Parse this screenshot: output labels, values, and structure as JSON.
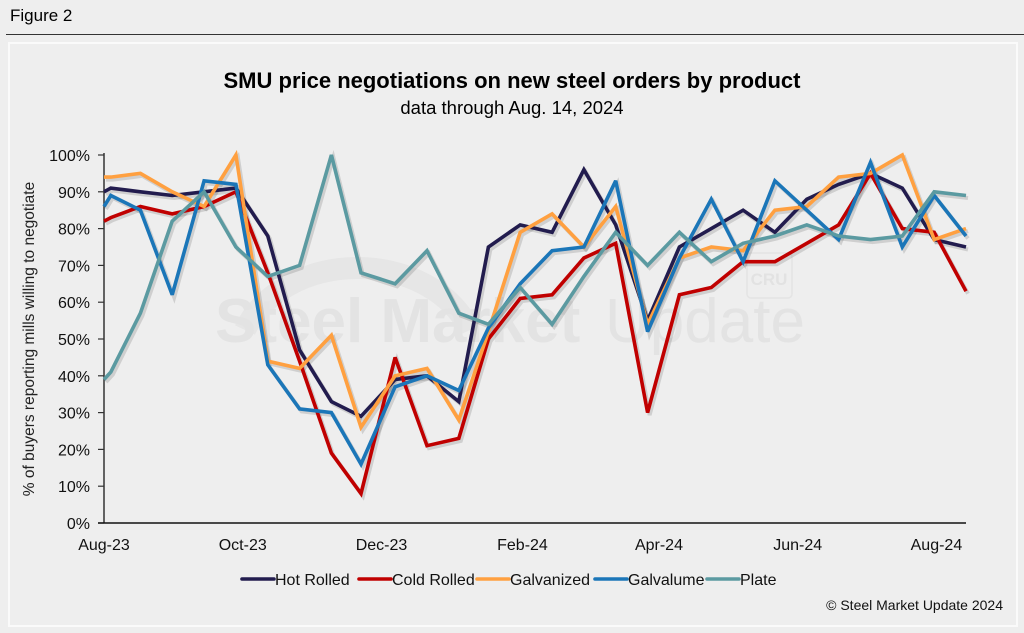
{
  "figure_label": "Figure 2",
  "copyright": "© Steel Market Update 2024",
  "watermark": {
    "bold": "Steel Market",
    "light": "Update",
    "badge": "CRU"
  },
  "chart_data": {
    "type": "line",
    "title": "SMU price negotiations on new steel orders by product",
    "subtitle": "data through Aug. 14, 2024",
    "xlabel": "",
    "ylabel": "% of buyers reporting mills willing to negotiate",
    "ylim": [
      0,
      100
    ],
    "xlim": [
      "2023-08-01",
      "2024-08-14"
    ],
    "y_ticks": [
      0,
      10,
      20,
      30,
      40,
      50,
      60,
      70,
      80,
      90,
      100
    ],
    "y_tick_labels": [
      "0%",
      "10%",
      "20%",
      "30%",
      "40%",
      "50%",
      "60%",
      "70%",
      "80%",
      "90%",
      "100%"
    ],
    "x_ticks": [
      "2023-08-01",
      "2023-10-01",
      "2023-12-01",
      "2024-02-01",
      "2024-04-01",
      "2024-06-01",
      "2024-08-01"
    ],
    "x_tick_labels": [
      "Aug-23",
      "Oct-23",
      "Dec-23",
      "Feb-24",
      "Apr-24",
      "Jun-24",
      "Aug-24"
    ],
    "grid": false,
    "legend_position": "bottom",
    "x": [
      "2023-08-01",
      "2023-08-04",
      "2023-08-17",
      "2023-08-31",
      "2023-09-14",
      "2023-09-28",
      "2023-10-12",
      "2023-10-26",
      "2023-11-09",
      "2023-11-22",
      "2023-12-07",
      "2023-12-21",
      "2024-01-04",
      "2024-01-17",
      "2024-01-31",
      "2024-02-14",
      "2024-02-28",
      "2024-03-13",
      "2024-03-27",
      "2024-04-10",
      "2024-04-24",
      "2024-05-08",
      "2024-05-22",
      "2024-06-05",
      "2024-06-19",
      "2024-07-03",
      "2024-07-17",
      "2024-07-31",
      "2024-08-14"
    ],
    "series": [
      {
        "name": "Hot Rolled",
        "color": "#221c4e",
        "values": [
          90,
          91,
          90,
          89,
          90,
          91,
          78,
          47,
          33,
          29,
          39,
          40,
          33,
          75,
          81,
          79,
          96,
          81,
          55,
          75,
          80,
          85,
          79,
          88,
          92,
          95,
          91,
          77,
          75
        ]
      },
      {
        "name": "Cold Rolled",
        "color": "#c00000",
        "values": [
          82,
          83,
          86,
          84,
          86,
          90,
          68,
          44,
          19,
          8,
          45,
          21,
          23,
          50,
          61,
          62,
          72,
          76,
          30,
          62,
          64,
          71,
          71,
          76,
          81,
          95,
          80,
          79,
          63
        ]
      },
      {
        "name": "Galvanized",
        "color": "#ffa040",
        "values": [
          94,
          94,
          95,
          90,
          86,
          100,
          44,
          42,
          51,
          26,
          40,
          42,
          28,
          52,
          79,
          84,
          75,
          86,
          54,
          72,
          75,
          74,
          85,
          86,
          94,
          95,
          100,
          77,
          80
        ]
      },
      {
        "name": "Galvalume",
        "color": "#1b76b8",
        "values": [
          86,
          89,
          85,
          62,
          93,
          92,
          43,
          31,
          30,
          16,
          37,
          40,
          36,
          53,
          65,
          74,
          75,
          93,
          52,
          72,
          88,
          71,
          93,
          85,
          77,
          98,
          75,
          89,
          78
        ]
      },
      {
        "name": "Plate",
        "color": "#5b9aa1",
        "values": [
          39,
          41,
          57,
          82,
          90,
          75,
          67,
          70,
          100,
          68,
          65,
          74,
          57,
          54,
          64,
          54,
          67,
          79,
          70,
          79,
          71,
          76,
          78,
          81,
          78,
          77,
          78,
          90,
          89
        ]
      }
    ]
  }
}
